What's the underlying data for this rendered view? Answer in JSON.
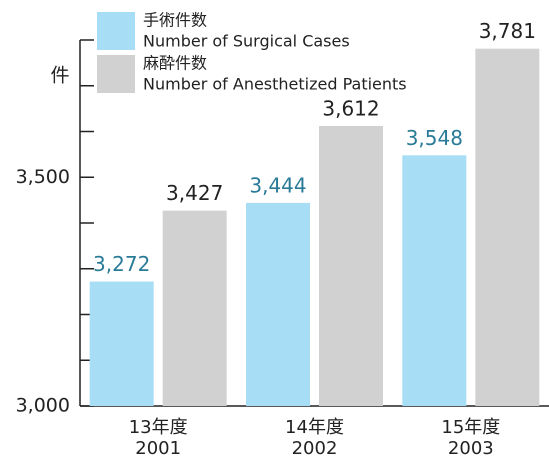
{
  "chart_data": {
    "type": "bar",
    "y_unit": "件",
    "categories": [
      [
        "13年度",
        "2001"
      ],
      [
        "14年度",
        "2002"
      ],
      [
        "15年度",
        "2003"
      ]
    ],
    "series": [
      {
        "name": "手術件数",
        "name_en": "Number of Surgical Cases",
        "color": "#a8ddf6",
        "label_color": "#2a7b98",
        "values": [
          3272,
          3444,
          3548
        ],
        "value_labels": [
          "3,272",
          "3,444",
          "3,548"
        ]
      },
      {
        "name": "麻酔件数",
        "name_en": "Number of Anesthetized Patients",
        "color": "#d1d1d1",
        "label_color": "#222222",
        "values": [
          3427,
          3612,
          3781
        ],
        "value_labels": [
          "3,427",
          "3,612",
          "3,781"
        ]
      }
    ],
    "ylim": [
      3000,
      3800
    ],
    "yticks": [
      {
        "value": 3000,
        "label": "3,000"
      },
      {
        "value": 3500,
        "label": "3,500"
      }
    ],
    "yminorticks": [
      3100,
      3200,
      3300,
      3400,
      3600,
      3700,
      3800
    ]
  }
}
